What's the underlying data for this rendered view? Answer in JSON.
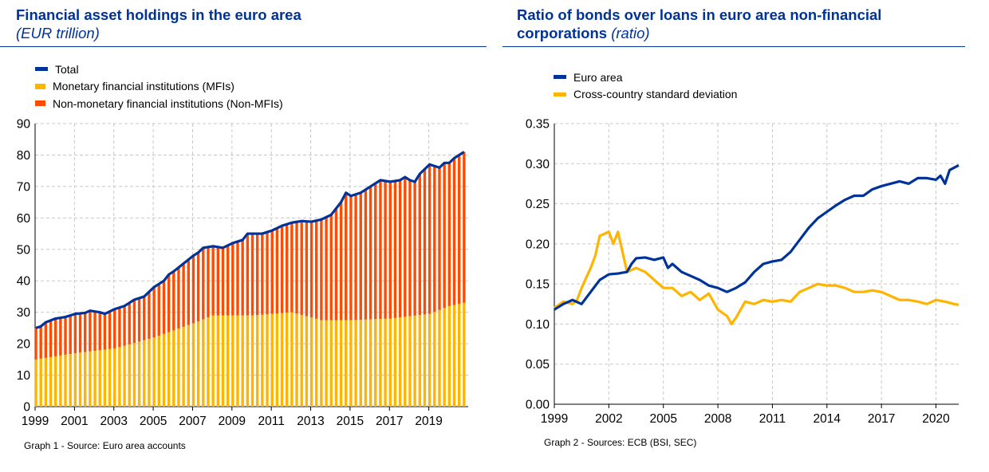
{
  "charts": [
    {
      "title": "Financial asset holdings in the euro area",
      "unit": "(EUR trillion)",
      "source": "Graph 1 - Source: Euro area accounts",
      "legend": [
        {
          "label": "Total",
          "color": "#003399",
          "kind": "line"
        },
        {
          "label": "Monetary financial institutions (MFIs)",
          "color": "#FFB400",
          "kind": "bar"
        },
        {
          "label": "Non-monetary financial institutions (Non-MFIs)",
          "color": "#FF4B00",
          "kind": "bar"
        }
      ]
    },
    {
      "title": "Ratio of bonds over loans in euro area non-financial",
      "title_line2": "corporations",
      "unit": "(ratio)",
      "source": "Graph 2 - Sources: ECB (BSI, SEC)",
      "legend": [
        {
          "label": "Euro area",
          "color": "#003399",
          "kind": "line"
        },
        {
          "label": "Cross-country standard deviation",
          "color": "#FFB400",
          "kind": "line"
        }
      ]
    }
  ],
  "chart_data": [
    {
      "type": "bar",
      "stacked": true,
      "frequency": "quarterly",
      "title": "Financial asset holdings in the euro area",
      "ylabel": "(EUR trillion)",
      "xlabel": "",
      "x_start": 1999.0,
      "x_step": 0.25,
      "xlim": [
        1999,
        2021
      ],
      "ylim": [
        0,
        90
      ],
      "yticks": [
        0,
        10,
        20,
        30,
        40,
        50,
        60,
        70,
        80,
        90
      ],
      "xticks": [
        1999,
        2001,
        2003,
        2005,
        2007,
        2009,
        2011,
        2013,
        2015,
        2017,
        2019
      ],
      "grid": true,
      "legend_position": "top-left",
      "mfi_anchors": [
        [
          1999.0,
          15
        ],
        [
          2001.0,
          17
        ],
        [
          2003.0,
          18.5
        ],
        [
          2005.0,
          22
        ],
        [
          2007.0,
          26.5
        ],
        [
          2008.0,
          29
        ],
        [
          2010.0,
          29
        ],
        [
          2012.0,
          30
        ],
        [
          2013.5,
          27.5
        ],
        [
          2015.0,
          27.5
        ],
        [
          2017.0,
          28
        ],
        [
          2019.0,
          29.5
        ],
        [
          2020.0,
          32
        ],
        [
          2020.75,
          33
        ]
      ],
      "total_anchors": [
        [
          1999.0,
          25
        ],
        [
          1999.25,
          25.5
        ],
        [
          1999.5,
          26.8
        ],
        [
          2000.0,
          28
        ],
        [
          2000.5,
          28.5
        ],
        [
          2001.0,
          29.5
        ],
        [
          2001.5,
          29.8
        ],
        [
          2001.75,
          30.5
        ],
        [
          2002.25,
          30
        ],
        [
          2002.5,
          29.5
        ],
        [
          2003.0,
          31
        ],
        [
          2003.5,
          32
        ],
        [
          2004.0,
          34
        ],
        [
          2004.5,
          35
        ],
        [
          2005.0,
          38
        ],
        [
          2005.5,
          40
        ],
        [
          2005.75,
          42
        ],
        [
          2006.0,
          43
        ],
        [
          2006.5,
          45.5
        ],
        [
          2007.0,
          48
        ],
        [
          2007.25,
          49
        ],
        [
          2007.5,
          50.5
        ],
        [
          2008.0,
          51
        ],
        [
          2008.5,
          50.5
        ],
        [
          2009.0,
          52
        ],
        [
          2009.5,
          53
        ],
        [
          2009.75,
          55
        ],
        [
          2010.0,
          55
        ],
        [
          2010.5,
          55
        ],
        [
          2011.0,
          56
        ],
        [
          2011.5,
          57.5
        ],
        [
          2011.75,
          58
        ],
        [
          2012.0,
          58.5
        ],
        [
          2012.5,
          59
        ],
        [
          2013.0,
          58.8
        ],
        [
          2013.5,
          59.5
        ],
        [
          2014.0,
          61
        ],
        [
          2014.5,
          65
        ],
        [
          2014.75,
          68
        ],
        [
          2015.0,
          67
        ],
        [
          2015.5,
          68
        ],
        [
          2016.0,
          70
        ],
        [
          2016.5,
          72
        ],
        [
          2017.0,
          71.5
        ],
        [
          2017.5,
          72
        ],
        [
          2017.75,
          73
        ],
        [
          2018.0,
          72
        ],
        [
          2018.25,
          71.5
        ],
        [
          2018.5,
          74
        ],
        [
          2019.0,
          77
        ],
        [
          2019.5,
          76
        ],
        [
          2019.75,
          77.5
        ],
        [
          2020.0,
          77.5
        ],
        [
          2020.25,
          79
        ],
        [
          2020.75,
          81
        ]
      ]
    },
    {
      "type": "line",
      "frequency": "monthly",
      "title": "Ratio of bonds over loans in euro area non-financial corporations",
      "ylabel": "(ratio)",
      "xlabel": "",
      "xlim": [
        1999,
        2021.25
      ],
      "ylim": [
        0.0,
        0.35
      ],
      "yticks": [
        0.0,
        0.05,
        0.1,
        0.15,
        0.2,
        0.25,
        0.3,
        0.35
      ],
      "xticks": [
        1999,
        2002,
        2005,
        2008,
        2011,
        2014,
        2017,
        2020
      ],
      "grid": true,
      "legend_position": "top-left",
      "series": [
        {
          "name": "Euro area",
          "color": "#003399",
          "points": [
            [
              1999.0,
              0.118
            ],
            [
              1999.5,
              0.125
            ],
            [
              2000.0,
              0.13
            ],
            [
              2000.5,
              0.125
            ],
            [
              2001.0,
              0.14
            ],
            [
              2001.5,
              0.155
            ],
            [
              2002.0,
              0.162
            ],
            [
              2002.5,
              0.163
            ],
            [
              2003.0,
              0.165
            ],
            [
              2003.25,
              0.175
            ],
            [
              2003.5,
              0.182
            ],
            [
              2004.0,
              0.183
            ],
            [
              2004.5,
              0.18
            ],
            [
              2005.0,
              0.183
            ],
            [
              2005.25,
              0.17
            ],
            [
              2005.5,
              0.175
            ],
            [
              2006.0,
              0.165
            ],
            [
              2006.5,
              0.16
            ],
            [
              2007.0,
              0.155
            ],
            [
              2007.5,
              0.148
            ],
            [
              2008.0,
              0.145
            ],
            [
              2008.5,
              0.14
            ],
            [
              2009.0,
              0.145
            ],
            [
              2009.5,
              0.152
            ],
            [
              2010.0,
              0.165
            ],
            [
              2010.5,
              0.175
            ],
            [
              2011.0,
              0.178
            ],
            [
              2011.5,
              0.18
            ],
            [
              2012.0,
              0.19
            ],
            [
              2012.5,
              0.205
            ],
            [
              2013.0,
              0.22
            ],
            [
              2013.5,
              0.232
            ],
            [
              2014.0,
              0.24
            ],
            [
              2014.5,
              0.248
            ],
            [
              2015.0,
              0.255
            ],
            [
              2015.5,
              0.26
            ],
            [
              2016.0,
              0.26
            ],
            [
              2016.5,
              0.268
            ],
            [
              2017.0,
              0.272
            ],
            [
              2017.5,
              0.275
            ],
            [
              2018.0,
              0.278
            ],
            [
              2018.5,
              0.275
            ],
            [
              2019.0,
              0.282
            ],
            [
              2019.5,
              0.282
            ],
            [
              2020.0,
              0.28
            ],
            [
              2020.25,
              0.285
            ],
            [
              2020.5,
              0.275
            ],
            [
              2020.75,
              0.292
            ],
            [
              2021.0,
              0.295
            ],
            [
              2021.25,
              0.298
            ]
          ]
        },
        {
          "name": "Cross-country standard deviation",
          "color": "#FFB400",
          "points": [
            [
              1999.0,
              0.12
            ],
            [
              1999.5,
              0.128
            ],
            [
              2000.0,
              0.125
            ],
            [
              2000.25,
              0.13
            ],
            [
              2000.5,
              0.145
            ],
            [
              2001.0,
              0.17
            ],
            [
              2001.25,
              0.185
            ],
            [
              2001.5,
              0.21
            ],
            [
              2002.0,
              0.215
            ],
            [
              2002.25,
              0.2
            ],
            [
              2002.5,
              0.215
            ],
            [
              2003.0,
              0.165
            ],
            [
              2003.5,
              0.17
            ],
            [
              2004.0,
              0.165
            ],
            [
              2004.5,
              0.155
            ],
            [
              2005.0,
              0.145
            ],
            [
              2005.5,
              0.145
            ],
            [
              2006.0,
              0.135
            ],
            [
              2006.5,
              0.14
            ],
            [
              2007.0,
              0.13
            ],
            [
              2007.5,
              0.138
            ],
            [
              2008.0,
              0.118
            ],
            [
              2008.5,
              0.11
            ],
            [
              2008.75,
              0.1
            ],
            [
              2009.0,
              0.108
            ],
            [
              2009.5,
              0.128
            ],
            [
              2010.0,
              0.125
            ],
            [
              2010.5,
              0.13
            ],
            [
              2011.0,
              0.128
            ],
            [
              2011.5,
              0.13
            ],
            [
              2012.0,
              0.128
            ],
            [
              2012.5,
              0.14
            ],
            [
              2013.0,
              0.145
            ],
            [
              2013.5,
              0.15
            ],
            [
              2014.0,
              0.148
            ],
            [
              2014.5,
              0.148
            ],
            [
              2015.0,
              0.145
            ],
            [
              2015.5,
              0.14
            ],
            [
              2016.0,
              0.14
            ],
            [
              2016.5,
              0.142
            ],
            [
              2017.0,
              0.14
            ],
            [
              2017.5,
              0.135
            ],
            [
              2018.0,
              0.13
            ],
            [
              2018.5,
              0.13
            ],
            [
              2019.0,
              0.128
            ],
            [
              2019.5,
              0.125
            ],
            [
              2020.0,
              0.13
            ],
            [
              2020.5,
              0.128
            ],
            [
              2021.0,
              0.125
            ],
            [
              2021.25,
              0.124
            ]
          ]
        }
      ]
    }
  ]
}
